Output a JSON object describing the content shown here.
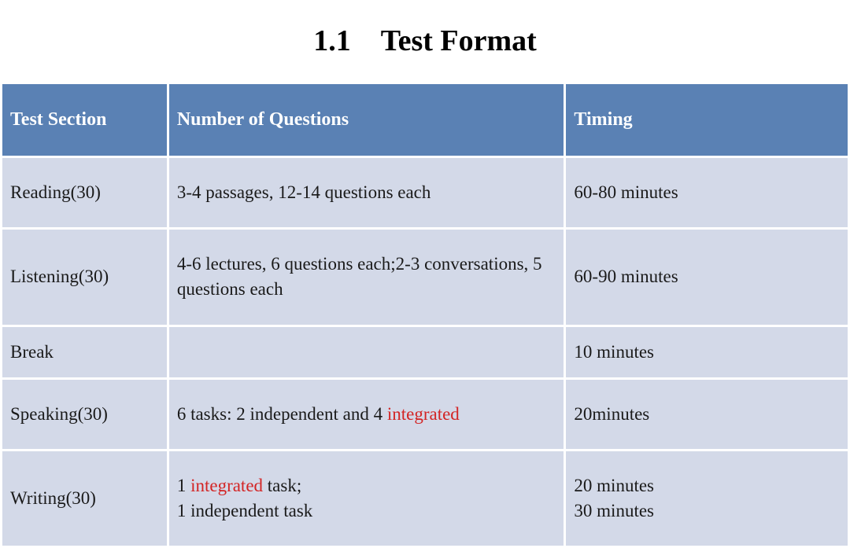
{
  "title": "1.1 Test Format",
  "table": {
    "headers": {
      "section": "Test Section",
      "questions": "Number of Questions",
      "timing": "Timing"
    },
    "rows": [
      {
        "section": "Reading(30)",
        "questions_parts": [
          "3-4 passages, 12-14 questions each"
        ],
        "questions_highlight": [],
        "timing": "60-80 minutes"
      },
      {
        "section": "Listening(30)",
        "questions_parts": [
          "4-6 lectures, 6 questions each;2-3 conversations, 5 questions each"
        ],
        "questions_highlight": [],
        "timing": "60-90 minutes"
      },
      {
        "section": "Break",
        "questions_parts": [
          ""
        ],
        "questions_highlight": [],
        "timing": "10 minutes"
      },
      {
        "section": "Speaking(30)",
        "questions_parts": [
          "6 tasks: 2 independent and 4 ",
          "integrated"
        ],
        "questions_highlight": [
          1
        ],
        "timing": "20minutes"
      },
      {
        "section": "Writing(30)",
        "questions_parts": [
          "1 ",
          "integrated",
          " task;\n1 independent task"
        ],
        "questions_highlight": [
          1
        ],
        "timing": "20 minutes\n30 minutes"
      }
    ]
  },
  "colors": {
    "header_bg": "#5a81b4",
    "header_text": "#ffffff",
    "cell_bg": "#d3d9e8",
    "cell_text": "#1a1a1a",
    "highlight": "#d32424",
    "page_bg": "#ffffff"
  }
}
